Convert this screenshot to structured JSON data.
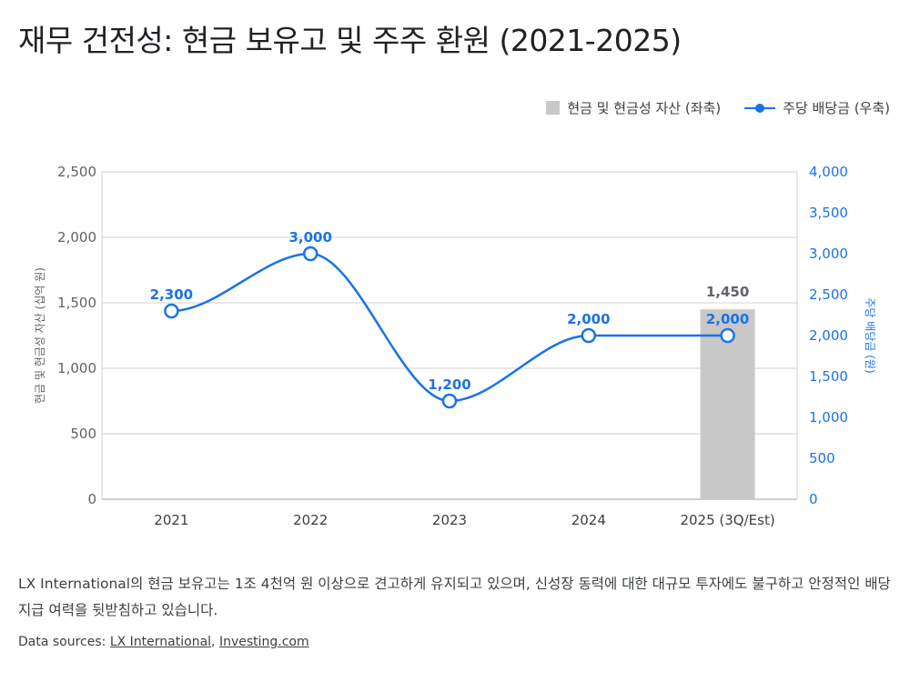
{
  "title": "재무 건전성: 현금 보유고 및 주주 환원 (2021-2025)",
  "legend": {
    "bar_label": "현금 및 현금성 자산 (좌축)",
    "line_label": "주당 배당금 (우축)"
  },
  "colors": {
    "bar": "#c8c8c8",
    "line": "#1a73e8",
    "grid": "#d0d0d0",
    "left_axis_text": "#5f6368",
    "right_axis_text": "#1a73e8",
    "bar_label": "#5f6368"
  },
  "chart_data": {
    "type": "bar",
    "categories": [
      "2021",
      "2022",
      "2023",
      "2024",
      "2025 (3Q/Est)"
    ],
    "series": [
      {
        "name": "현금 및 현금성 자산 (좌축)",
        "type": "bar",
        "axis": "left",
        "values": [
          null,
          null,
          null,
          null,
          1450
        ],
        "data_labels": [
          "",
          "",
          "",
          "",
          "1,450"
        ]
      },
      {
        "name": "주당 배당금 (우축)",
        "type": "line",
        "axis": "right",
        "values": [
          2300,
          3000,
          1200,
          2000,
          2000
        ],
        "data_labels": [
          "2,300",
          "3,000",
          "1,200",
          "2,000",
          "2,000"
        ]
      }
    ],
    "y_left": {
      "label": "현금 및 현금성 자산 (십억 원)",
      "range": [
        0,
        2500
      ],
      "ticks": [
        0,
        500,
        1000,
        1500,
        2000,
        2500
      ],
      "tick_labels": [
        "0",
        "500",
        "1,000",
        "1,500",
        "2,000",
        "2,500"
      ]
    },
    "y_right": {
      "label": "주당 배당금 (원)",
      "range": [
        0,
        4000
      ],
      "ticks": [
        0,
        500,
        1000,
        1500,
        2000,
        2500,
        3000,
        3500,
        4000
      ],
      "tick_labels": [
        "0",
        "500",
        "1,000",
        "1,500",
        "2,000",
        "2,500",
        "3,000",
        "3,500",
        "4,000"
      ]
    },
    "grid": true,
    "legend_position": "top-right"
  },
  "description": "LX International의 현금 보유고는 1조 4천억 원 이상으로 견고하게 유지되고 있으며, 신성장 동력에 대한 대규모 투자에도 불구하고 안정적인 배당 지급 여력을 뒷받침하고 있습니다.",
  "sources": {
    "prefix": "Data sources: ",
    "links": [
      "LX International",
      "Investing.com"
    ],
    "separator": ", "
  }
}
